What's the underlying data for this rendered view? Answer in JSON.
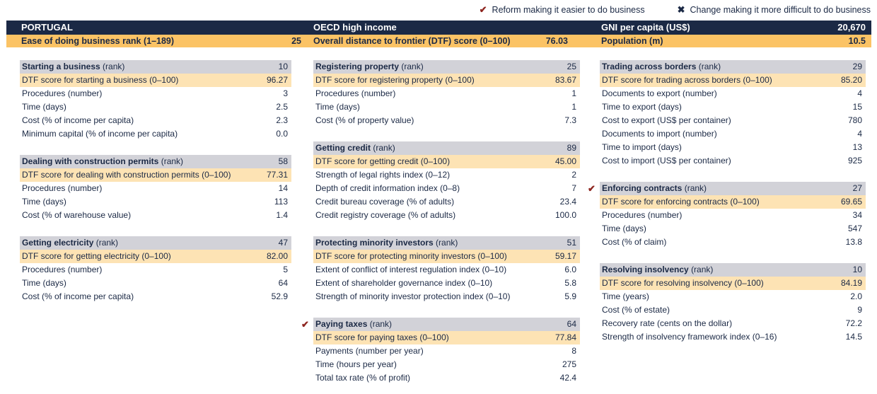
{
  "legend": {
    "check_glyph": "✔",
    "x_glyph": "✖",
    "reform": "Reform making it easier to do business",
    "change": "Change making it more difficult to do business"
  },
  "header": {
    "country": "PORTUGAL",
    "region": "OECD high income",
    "gni_label": "GNI per capita (US$)",
    "gni_value": "20,670",
    "ease_label": "Ease of doing business rank (1–189)",
    "ease_value": "25",
    "dtf_label": "Overall distance to frontier (DTF) score (0–100)",
    "dtf_value": "76.03",
    "pop_label": "Population (m)",
    "pop_value": "10.5"
  },
  "rank_suffix": "(rank)",
  "columns": [
    [
      {
        "name": "Starting a business",
        "rank": "10",
        "reform": false,
        "dtf_label": "DTF score for starting a business (0–100)",
        "dtf_value": "96.27",
        "rows": [
          {
            "label": "Procedures (number)",
            "value": "3"
          },
          {
            "label": "Time (days)",
            "value": "2.5"
          },
          {
            "label": "Cost (% of income per capita)",
            "value": "2.3"
          },
          {
            "label": "Minimum capital (% of income per capita)",
            "value": "0.0"
          }
        ]
      },
      {
        "name": "Dealing with construction permits",
        "rank": "58",
        "reform": false,
        "dtf_label": "DTF score for dealing with construction permits (0–100)",
        "dtf_value": "77.31",
        "rows": [
          {
            "label": "Procedures (number)",
            "value": "14"
          },
          {
            "label": "Time (days)",
            "value": "113"
          },
          {
            "label": "Cost (% of warehouse value)",
            "value": "1.4"
          }
        ]
      },
      {
        "name": "Getting electricity",
        "rank": "47",
        "reform": false,
        "dtf_label": "DTF score for getting electricity (0–100)",
        "dtf_value": "82.00",
        "rows": [
          {
            "label": "Procedures (number)",
            "value": "5"
          },
          {
            "label": "Time (days)",
            "value": "64"
          },
          {
            "label": "Cost (% of income per capita)",
            "value": "52.9"
          }
        ]
      }
    ],
    [
      {
        "name": "Registering property",
        "rank": "25",
        "reform": false,
        "dtf_label": "DTF score for registering property (0–100)",
        "dtf_value": "83.67",
        "rows": [
          {
            "label": "Procedures (number)",
            "value": "1"
          },
          {
            "label": "Time (days)",
            "value": "1"
          },
          {
            "label": "Cost (% of property value)",
            "value": "7.3"
          }
        ]
      },
      {
        "name": "Getting credit",
        "rank": "89",
        "reform": false,
        "dtf_label": "DTF score for getting credit (0–100)",
        "dtf_value": "45.00",
        "rows": [
          {
            "label": "Strength of legal rights index (0–12)",
            "value": "2"
          },
          {
            "label": "Depth of credit information index (0–8)",
            "value": "7"
          },
          {
            "label": "Credit bureau coverage (% of adults)",
            "value": "23.4"
          },
          {
            "label": "Credit registry coverage (% of adults)",
            "value": "100.0"
          }
        ]
      },
      {
        "name": "Protecting minority investors",
        "rank": "51",
        "reform": false,
        "dtf_label": "DTF score for protecting minority investors (0–100)",
        "dtf_value": "59.17",
        "rows": [
          {
            "label": "Extent of conflict of interest regulation index (0–10)",
            "value": "6.0"
          },
          {
            "label": "Extent of shareholder governance index (0–10)",
            "value": "5.8"
          },
          {
            "label": "Strength of minority investor protection index (0–10)",
            "value": "5.9"
          }
        ]
      },
      {
        "name": "Paying taxes",
        "rank": "64",
        "reform": true,
        "dtf_label": "DTF score for paying taxes (0–100)",
        "dtf_value": "77.84",
        "rows": [
          {
            "label": "Payments (number per year)",
            "value": "8"
          },
          {
            "label": "Time (hours per year)",
            "value": "275"
          },
          {
            "label": "Total tax rate (% of profit)",
            "value": "42.4"
          }
        ]
      }
    ],
    [
      {
        "name": "Trading across borders",
        "rank": "29",
        "reform": false,
        "dtf_label": "DTF score for trading across borders (0–100)",
        "dtf_value": "85.20",
        "rows": [
          {
            "label": "Documents to export (number)",
            "value": "4"
          },
          {
            "label": "Time to export (days)",
            "value": "15"
          },
          {
            "label": "Cost to export (US$ per container)",
            "value": "780"
          },
          {
            "label": "Documents to import (number)",
            "value": "4"
          },
          {
            "label": "Time to import (days)",
            "value": "13"
          },
          {
            "label": "Cost to import (US$ per container)",
            "value": "925"
          }
        ]
      },
      {
        "name": "Enforcing contracts",
        "rank": "27",
        "reform": true,
        "dtf_label": "DTF score for enforcing contracts (0–100)",
        "dtf_value": "69.65",
        "rows": [
          {
            "label": "Procedures (number)",
            "value": "34"
          },
          {
            "label": "Time (days)",
            "value": "547"
          },
          {
            "label": "Cost (% of claim)",
            "value": "13.8"
          }
        ]
      },
      {
        "name": "Resolving insolvency",
        "rank": "10",
        "reform": false,
        "dtf_label": "DTF score for resolving insolvency (0–100)",
        "dtf_value": "84.19",
        "rows": [
          {
            "label": "Time (years)",
            "value": "2.0"
          },
          {
            "label": "Cost (% of estate)",
            "value": "9"
          },
          {
            "label": "Recovery rate (cents on the dollar)",
            "value": "72.2"
          },
          {
            "label": "Strength of insolvency framework index (0–16)",
            "value": "14.5"
          }
        ]
      }
    ]
  ]
}
